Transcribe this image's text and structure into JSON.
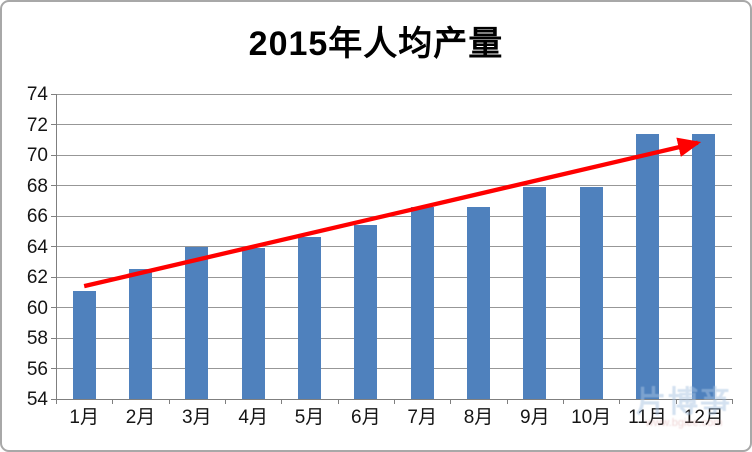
{
  "chart_data": {
    "type": "bar",
    "title": "2015年人均产量",
    "categories": [
      "1月",
      "2月",
      "3月",
      "4月",
      "5月",
      "6月",
      "7月",
      "8月",
      "9月",
      "10月",
      "11月",
      "12月"
    ],
    "values": [
      61.1,
      62.5,
      64.0,
      63.9,
      64.6,
      65.4,
      66.6,
      66.6,
      67.9,
      67.9,
      71.4,
      71.4
    ],
    "xlabel": "",
    "ylabel": "",
    "ylim": [
      54,
      74
    ],
    "yticks": [
      54,
      56,
      58,
      60,
      62,
      64,
      66,
      68,
      70,
      72,
      74
    ],
    "grid": true,
    "legend": false,
    "bar_color": "#4f81bd",
    "gridline_color": "#979797",
    "axis_color": "#7f7f7f",
    "trend_arrow": {
      "color": "#ff0000",
      "from": {
        "category_index": 0.5,
        "value": 61.4
      },
      "to": {
        "category_index": 11.5,
        "value": 70.9
      }
    }
  },
  "watermark": {
    "line1": "片博亊",
    "line2": "www.bgiee.com"
  }
}
